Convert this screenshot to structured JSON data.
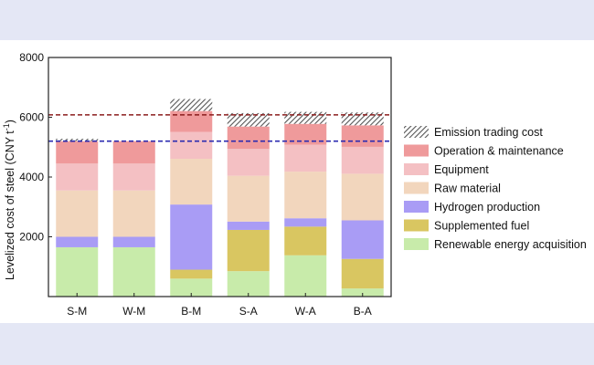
{
  "colors": {
    "page_background": "#e4e7f5",
    "plot_background": "#ffffff",
    "red_line": "#8b1d1d",
    "blue_line": "#2b2bb0"
  },
  "chart_data": {
    "type": "bar",
    "stacked": true,
    "ylabel": "Levelized cost of steel (CNY t",
    "ylabel_superscript": "-1",
    "ylabel_close": ")",
    "ylim": [
      0,
      8000
    ],
    "yticks": [
      2000,
      4000,
      6000,
      8000
    ],
    "categories": [
      "S-M",
      "W-M",
      "B-M",
      "S-A",
      "W-A",
      "B-A"
    ],
    "reference_lines": [
      {
        "value": 6080,
        "color": "#8b1d1d",
        "style": "dashed"
      },
      {
        "value": 5200,
        "color": "#2b2bb0",
        "style": "dashed"
      }
    ],
    "series": [
      {
        "name": "Renewable energy acquisition",
        "color": "#c8ebaa",
        "values": [
          1650,
          1650,
          600,
          850,
          1380,
          270
        ]
      },
      {
        "name": "Supplemented fuel",
        "color": "#d9c661",
        "values": [
          0,
          0,
          300,
          1380,
          960,
          990
        ]
      },
      {
        "name": "Hydrogen production",
        "color": "#a99cf5",
        "values": [
          350,
          350,
          2180,
          280,
          280,
          1290
        ]
      },
      {
        "name": "Raw material",
        "color": "#f2d6bd",
        "values": [
          1550,
          1550,
          1530,
          1530,
          1560,
          1560
        ]
      },
      {
        "name": "Equipment",
        "color": "#f4c0c3",
        "values": [
          900,
          900,
          900,
          900,
          900,
          900
        ]
      },
      {
        "name": "Operation & maintenance",
        "color": "#ef9a9b",
        "values": [
          750,
          750,
          700,
          750,
          700,
          720
        ]
      },
      {
        "name": "Emission trading cost",
        "color": "#777777",
        "pattern": "hatch",
        "values": [
          80,
          0,
          400,
          450,
          400,
          430
        ]
      }
    ],
    "legend": {
      "placement": "right",
      "order": [
        "Emission trading cost",
        "Operation & maintenance",
        "Equipment",
        "Raw material",
        "Hydrogen production",
        "Supplemented fuel",
        "Renewable energy acquisition"
      ]
    }
  }
}
